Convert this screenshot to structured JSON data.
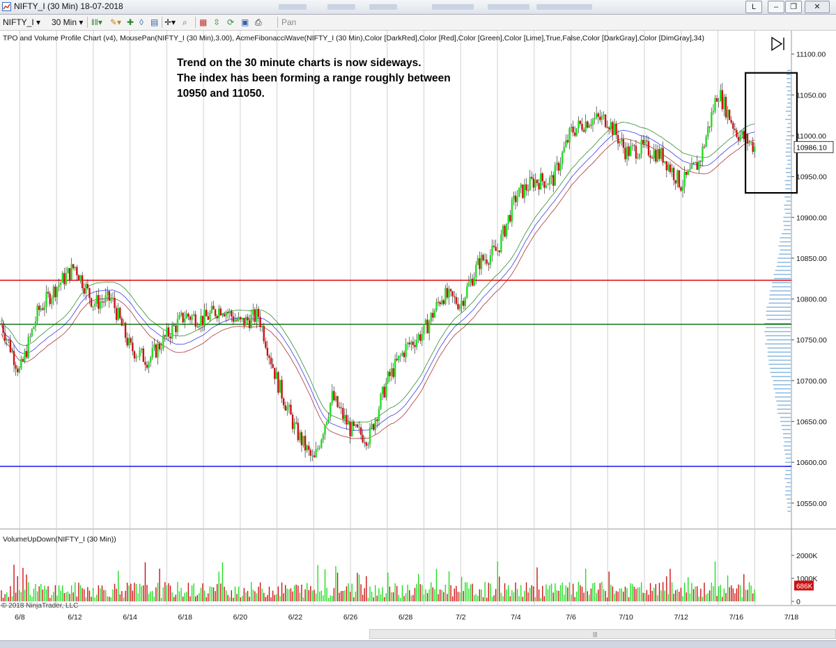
{
  "window": {
    "title": "NIFTY_I (30 Min)  18-07-2018"
  },
  "toolbar": {
    "instrument": "NIFTY_I",
    "interval": "30 Min",
    "pan": "Pan"
  },
  "panels": {
    "price_header": "TPO and Volume Profile Chart (v4), MousePan(NIFTY_I (30 Min),3.00), AcmeFibonacciWave(NIFTY_I (30 Min),Color [DarkRed],Color [Red],Color [Green],Color [Lime],True,False,Color [DarkGray],Color [DimGray],34)",
    "volume_header": "VolumeUpDown(NIFTY_I (30 Min))",
    "copyright": "© 2018 NinjaTrader, LLC"
  },
  "annotation": [
    "Trend on the 30 minute charts is now sideways.",
    "The index has been forming a range roughly between",
    "10950 and 11050."
  ],
  "colors": {
    "up": "#22dd22",
    "down": "#cc1111",
    "resistance": "#dd0000",
    "pivot": "#006600",
    "support": "#0000ee",
    "upper_band": "#2e8b2e",
    "mid_band": "#3a3aee",
    "lower_band": "#aa3333",
    "profile": "#89b8df"
  },
  "chart_data": {
    "type": "candlestick",
    "instrument": "NIFTY_I",
    "interval": "30 Min",
    "price_axis": {
      "ticks": [
        10550,
        10600,
        10650,
        10700,
        10750,
        10800,
        10850,
        10900,
        10950,
        11000,
        11050,
        11100
      ],
      "tick_labels": [
        "10550.00",
        "10600.00",
        "10650.00",
        "10700.00",
        "10750.00",
        "10800.00",
        "10850.00",
        "10900.00",
        "10950.00",
        "11000.00",
        "11050.00",
        "11100.00"
      ],
      "range": [
        10520,
        11110
      ]
    },
    "x_axis": {
      "labels": [
        "6/8",
        "6/12",
        "6/14",
        "6/18",
        "6/20",
        "6/22",
        "6/26",
        "6/28",
        "7/2",
        "7/4",
        "7/6",
        "7/10",
        "7/12",
        "7/16",
        "7/18"
      ],
      "range": [
        0,
        43
      ]
    },
    "last_price": {
      "label": "10986.10",
      "value": 10986.1
    },
    "horizontal_lines": [
      {
        "value": 10823,
        "color": "red"
      },
      {
        "value": 10769,
        "color": "green"
      },
      {
        "value": 10595,
        "color": "blue"
      }
    ],
    "range_box": {
      "x": [
        40.5,
        43.3
      ],
      "y": [
        10930,
        11077
      ]
    },
    "close_path": [
      [
        0,
        10770
      ],
      [
        1,
        10710
      ],
      [
        2,
        10785
      ],
      [
        3,
        10815
      ],
      [
        4,
        10840
      ],
      [
        5,
        10795
      ],
      [
        6,
        10800
      ],
      [
        7,
        10740
      ],
      [
        8,
        10725
      ],
      [
        9,
        10755
      ],
      [
        10,
        10780
      ],
      [
        11,
        10775
      ],
      [
        12,
        10790
      ],
      [
        13,
        10770
      ],
      [
        14,
        10780
      ],
      [
        15,
        10700
      ],
      [
        16,
        10640
      ],
      [
        17,
        10600
      ],
      [
        18,
        10680
      ],
      [
        19,
        10640
      ],
      [
        20,
        10630
      ],
      [
        21,
        10700
      ],
      [
        22,
        10740
      ],
      [
        23,
        10760
      ],
      [
        24,
        10805
      ],
      [
        25,
        10795
      ],
      [
        26,
        10845
      ],
      [
        27,
        10860
      ],
      [
        28,
        10925
      ],
      [
        29,
        10945
      ],
      [
        30,
        10945
      ],
      [
        31,
        11005
      ],
      [
        32,
        11020
      ],
      [
        33,
        11020
      ],
      [
        34,
        10980
      ],
      [
        35,
        10985
      ],
      [
        36,
        10975
      ],
      [
        37,
        10940
      ],
      [
        38,
        10968
      ],
      [
        39,
        11055
      ],
      [
        40,
        11005
      ],
      [
        41,
        10986
      ]
    ],
    "volume_axis": {
      "ticks": [
        0,
        1000,
        2000
      ],
      "tick_labels": [
        "0",
        "1000K",
        "2000K"
      ],
      "last_label": "686K",
      "last_value": 686
    }
  }
}
